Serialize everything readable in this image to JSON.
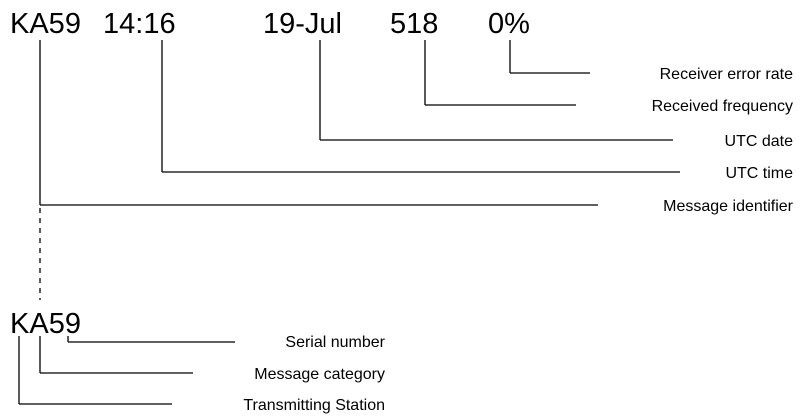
{
  "header_fields": {
    "message_id": "KA59",
    "utc_time": "14:16",
    "utc_date": "19-Jul",
    "frequency": "518",
    "error_rate": "0%"
  },
  "header_labels": {
    "error_rate": "Receiver error rate",
    "frequency": "Received frequency",
    "utc_date": "UTC date",
    "utc_time": "UTC time",
    "message_id": "Message identifier"
  },
  "breakdown": {
    "code": "KA59",
    "part_station": "K",
    "part_category": "A",
    "part_serial": "59",
    "labels": {
      "serial": "Serial number",
      "category": "Message category",
      "station": "Transmitting Station"
    }
  }
}
